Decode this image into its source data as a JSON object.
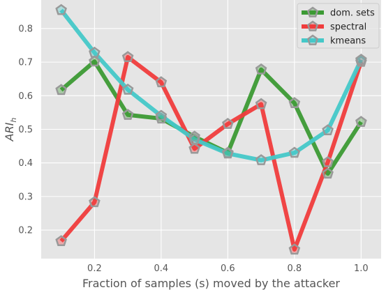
{
  "chart_data": {
    "type": "line",
    "xlabel": "Fraction of samples (s) moved by the attacker",
    "ylabel": "ARI",
    "ylabel_sub": "h",
    "xlim": [
      0.04,
      1.06
    ],
    "ylim": [
      0.115,
      0.885
    ],
    "xticks": [
      0.2,
      0.4,
      0.6,
      0.8,
      1.0
    ],
    "xtick_labels": [
      "0.2",
      "0.4",
      "0.6",
      "0.8",
      "1.0"
    ],
    "yticks": [
      0.2,
      0.3,
      0.4,
      0.5,
      0.6,
      0.7,
      0.8
    ],
    "ytick_labels": [
      "0.2",
      "0.3",
      "0.4",
      "0.5",
      "0.6",
      "0.7",
      "0.8"
    ],
    "grid": true,
    "legend_position": "top-right",
    "marker": "pentagon",
    "marker_color": "#999999",
    "background": "#e5e5e5",
    "x": [
      0.1,
      0.2,
      0.3,
      0.4,
      0.5,
      0.6,
      0.7,
      0.8,
      0.9,
      1.0
    ],
    "series": [
      {
        "name": "dom. sets",
        "color": "#3c9a34",
        "values": [
          0.617,
          0.702,
          0.543,
          0.532,
          0.478,
          0.43,
          0.678,
          0.578,
          0.368,
          0.522
        ]
      },
      {
        "name": "spectral",
        "color": "#f03c3c",
        "values": [
          0.167,
          0.283,
          0.715,
          0.64,
          0.442,
          0.516,
          0.575,
          0.142,
          0.402,
          0.701
        ]
      },
      {
        "name": "kmeans",
        "color": "#45c8c8",
        "values": [
          0.855,
          0.728,
          0.618,
          0.54,
          0.47,
          0.428,
          0.408,
          0.43,
          0.497,
          0.707
        ]
      }
    ]
  }
}
